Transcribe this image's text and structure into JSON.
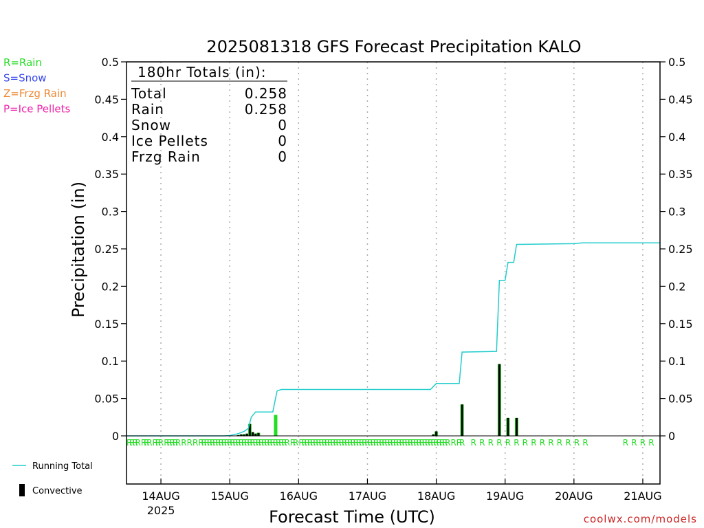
{
  "chart_data": {
    "type": "bar",
    "title": "2025081318 GFS Forecast Precipitation KALO",
    "xlabel": "Forecast Time (UTC)",
    "ylabel": "Precipitation (in)",
    "ylim": [
      0,
      0.5
    ],
    "yticks": [
      "0",
      "0.05",
      "0.1",
      "0.15",
      "0.2",
      "0.25",
      "0.3",
      "0.35",
      "0.4",
      "0.45",
      "0.5"
    ],
    "xlim_hours": [
      -6,
      180
    ],
    "xticks": [
      {
        "label": "14AUG",
        "hour": 6
      },
      {
        "label": "15AUG",
        "hour": 30
      },
      {
        "label": "16AUG",
        "hour": 54
      },
      {
        "label": "17AUG",
        "hour": 78
      },
      {
        "label": "18AUG",
        "hour": 102
      },
      {
        "label": "19AUG",
        "hour": 126
      },
      {
        "label": "20AUG",
        "hour": 150
      },
      {
        "label": "21AUG",
        "hour": 174
      }
    ],
    "year_label": "2025",
    "grid": "dotted-vertical",
    "legend_types": [
      {
        "label": "R=Rain",
        "color": "#22dd22"
      },
      {
        "label": "S=Snow",
        "color": "#3344ee"
      },
      {
        "label": "Z=Frzg Rain",
        "color": "#ee8833"
      },
      {
        "label": "P=Ice Pellets",
        "color": "#ee22aa"
      }
    ],
    "legend_series": [
      {
        "label": "Running Total",
        "color": "#22cccc",
        "kind": "line"
      },
      {
        "label": "Convective",
        "color": "#000000",
        "kind": "bar"
      }
    ],
    "totals_box": {
      "header": "180hr Totals (in):",
      "rows": [
        {
          "label": "Total",
          "value": "0.258"
        },
        {
          "label": "Rain",
          "value": "0.258"
        },
        {
          "label": "Snow",
          "value": "0"
        },
        {
          "label": "Ice Pellets",
          "value": "0"
        },
        {
          "label": "Frzg Rain",
          "value": "0"
        }
      ]
    },
    "series": [
      {
        "name": "Running Total",
        "color": "#22cccc",
        "points": [
          [
            -6,
            0
          ],
          [
            28,
            0
          ],
          [
            30,
            0.0005
          ],
          [
            33,
            0.003
          ],
          [
            35,
            0.006
          ],
          [
            36.5,
            0.01
          ],
          [
            37.5,
            0.025
          ],
          [
            39,
            0.032
          ],
          [
            45,
            0.032
          ],
          [
            46.5,
            0.06
          ],
          [
            48,
            0.062
          ],
          [
            100,
            0.062
          ],
          [
            102,
            0.07
          ],
          [
            110,
            0.07
          ],
          [
            111,
            0.112
          ],
          [
            123,
            0.113
          ],
          [
            124,
            0.208
          ],
          [
            126,
            0.208
          ],
          [
            127,
            0.232
          ],
          [
            129,
            0.232
          ],
          [
            130,
            0.256
          ],
          [
            150,
            0.257
          ],
          [
            153,
            0.258
          ],
          [
            180,
            0.258
          ]
        ]
      },
      {
        "name": "Precipitation",
        "bars": [
          {
            "hour": 33,
            "value": 0.001,
            "convective": true
          },
          {
            "hour": 34,
            "value": 0.002,
            "convective": true
          },
          {
            "hour": 35,
            "value": 0.002,
            "convective": true
          },
          {
            "hour": 36,
            "value": 0.003,
            "convective": true
          },
          {
            "hour": 37,
            "value": 0.016,
            "convective": true
          },
          {
            "hour": 38,
            "value": 0.005,
            "convective": true
          },
          {
            "hour": 39,
            "value": 0.003,
            "convective": true
          },
          {
            "hour": 40,
            "value": 0.004,
            "convective": true
          },
          {
            "hour": 46,
            "value": 0.028,
            "convective": false
          },
          {
            "hour": 101,
            "value": 0.002,
            "convective": true
          },
          {
            "hour": 102,
            "value": 0.006,
            "convective": true
          },
          {
            "hour": 111,
            "value": 0.042,
            "convective": true
          },
          {
            "hour": 124,
            "value": 0.096,
            "convective": true
          },
          {
            "hour": 127,
            "value": 0.024,
            "convective": true
          },
          {
            "hour": 130,
            "value": 0.024,
            "convective": true
          }
        ]
      }
    ],
    "type_markers": {
      "label": "R",
      "color": "#22dd22",
      "hours": [
        -5,
        -4,
        -3,
        -2,
        0,
        1,
        2,
        4,
        5,
        6,
        8,
        9,
        10,
        11,
        12,
        14,
        16,
        18,
        20,
        21,
        22,
        23,
        24,
        25,
        26,
        27,
        28,
        29,
        30,
        31,
        32,
        33,
        34,
        35,
        36,
        37,
        38,
        39,
        40,
        41,
        42,
        43,
        44,
        45,
        46,
        47,
        48,
        49,
        50,
        52,
        53,
        55,
        56,
        57,
        58,
        59,
        60,
        61,
        62,
        63,
        64,
        65,
        66,
        67,
        68,
        69,
        70,
        71,
        72,
        73,
        74,
        75,
        76,
        77,
        78,
        79,
        80,
        81,
        82,
        83,
        84,
        85,
        86,
        87,
        88,
        89,
        90,
        91,
        92,
        93,
        94,
        95,
        96,
        97,
        98,
        99,
        100,
        101,
        102,
        103,
        104,
        105,
        106,
        108,
        110,
        111,
        115,
        118,
        121,
        124,
        127,
        130,
        133,
        136,
        139,
        142,
        145,
        148,
        151,
        154,
        168,
        171,
        174,
        177,
        180
      ]
    },
    "credit": "coolwx.com/models"
  }
}
